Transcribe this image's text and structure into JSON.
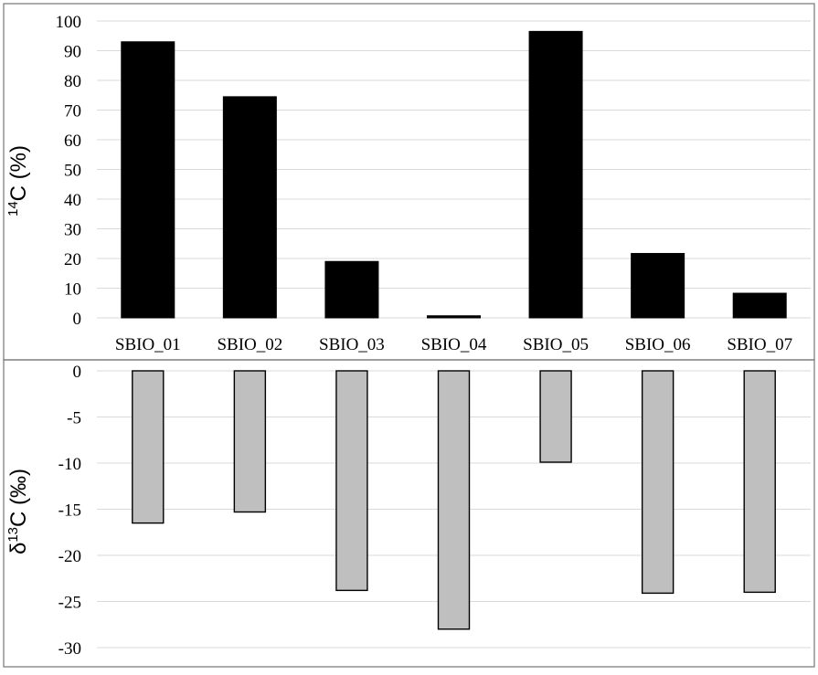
{
  "colors": {
    "panel_border": "#7f7f7f",
    "grid": "#d9d9d9",
    "bar_top": "#000000",
    "bar_bottom": "#bfbfbf",
    "bar_outline": "#000000",
    "text": "#000000"
  },
  "chart_data": [
    {
      "type": "bar",
      "title": "",
      "xlabel": "",
      "ylabel_base": "C (%)",
      "ylabel_sup": "14",
      "ylim": [
        0,
        100
      ],
      "yticks": [
        "100",
        "90",
        "80",
        "70",
        "60",
        "50",
        "40",
        "30",
        "20",
        "10",
        "0"
      ],
      "grid": true,
      "categories": [
        "SBIO_01",
        "SBIO_02",
        "SBIO_03",
        "SBIO_04",
        "SBIO_05",
        "SBIO_06",
        "SBIO_07"
      ],
      "values": [
        93,
        74.5,
        19,
        0.7,
        96.5,
        21.7,
        8.3
      ]
    },
    {
      "type": "bar",
      "title": "",
      "xlabel": "",
      "ylabel_pre": "δ",
      "ylabel_sup": "13",
      "ylabel_base": "C (‰)",
      "ylim": [
        -30,
        0
      ],
      "yticks": [
        "0",
        "-5",
        "-10",
        "-15",
        "-20",
        "-25",
        "-30"
      ],
      "grid": true,
      "categories": [
        "SBIO_01",
        "SBIO_02",
        "SBIO_03",
        "SBIO_04",
        "SBIO_05",
        "SBIO_06",
        "SBIO_07"
      ],
      "values": [
        -16.5,
        -15.3,
        -23.8,
        -28,
        -9.9,
        -24.1,
        -24
      ]
    }
  ]
}
